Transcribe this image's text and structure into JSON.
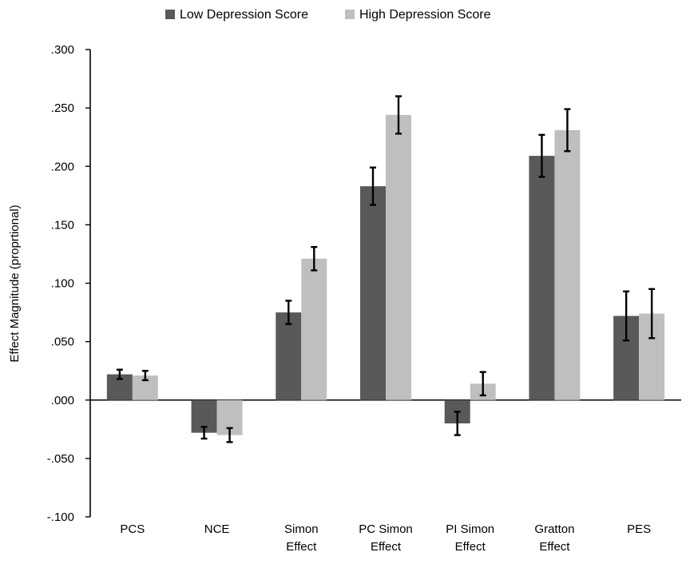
{
  "chart_data": {
    "type": "bar",
    "ylabel": "Effect Magnitude (proprtional)",
    "ylim": [
      -0.1,
      0.3
    ],
    "y_ticks": [
      0.3,
      0.25,
      0.2,
      0.15,
      0.1,
      0.05,
      0.0,
      -0.05,
      -0.1
    ],
    "y_tick_labels": [
      ".300",
      ".250",
      ".200",
      ".150",
      ".100",
      ".050",
      ".000",
      "-.050",
      "-.100"
    ],
    "categories": [
      [
        "PCS"
      ],
      [
        "NCE"
      ],
      [
        "Simon",
        "Effect"
      ],
      [
        "PC Simon",
        "Effect"
      ],
      [
        "PI Simon",
        "Effect"
      ],
      [
        "Gratton",
        "Effect"
      ],
      [
        "PES"
      ]
    ],
    "series": [
      {
        "name": "Low Depression Score",
        "color": "#595959",
        "values": [
          0.022,
          -0.028,
          0.075,
          0.183,
          -0.02,
          0.209,
          0.072
        ],
        "errors": [
          0.004,
          0.005,
          0.01,
          0.016,
          0.01,
          0.018,
          0.021
        ]
      },
      {
        "name": "High Depression Score",
        "color": "#bfbfbf",
        "values": [
          0.021,
          -0.03,
          0.121,
          0.244,
          0.014,
          0.231,
          0.074
        ],
        "errors": [
          0.004,
          0.006,
          0.01,
          0.016,
          0.01,
          0.018,
          0.021
        ]
      }
    ],
    "legend_position": "top-center",
    "grid": false
  }
}
